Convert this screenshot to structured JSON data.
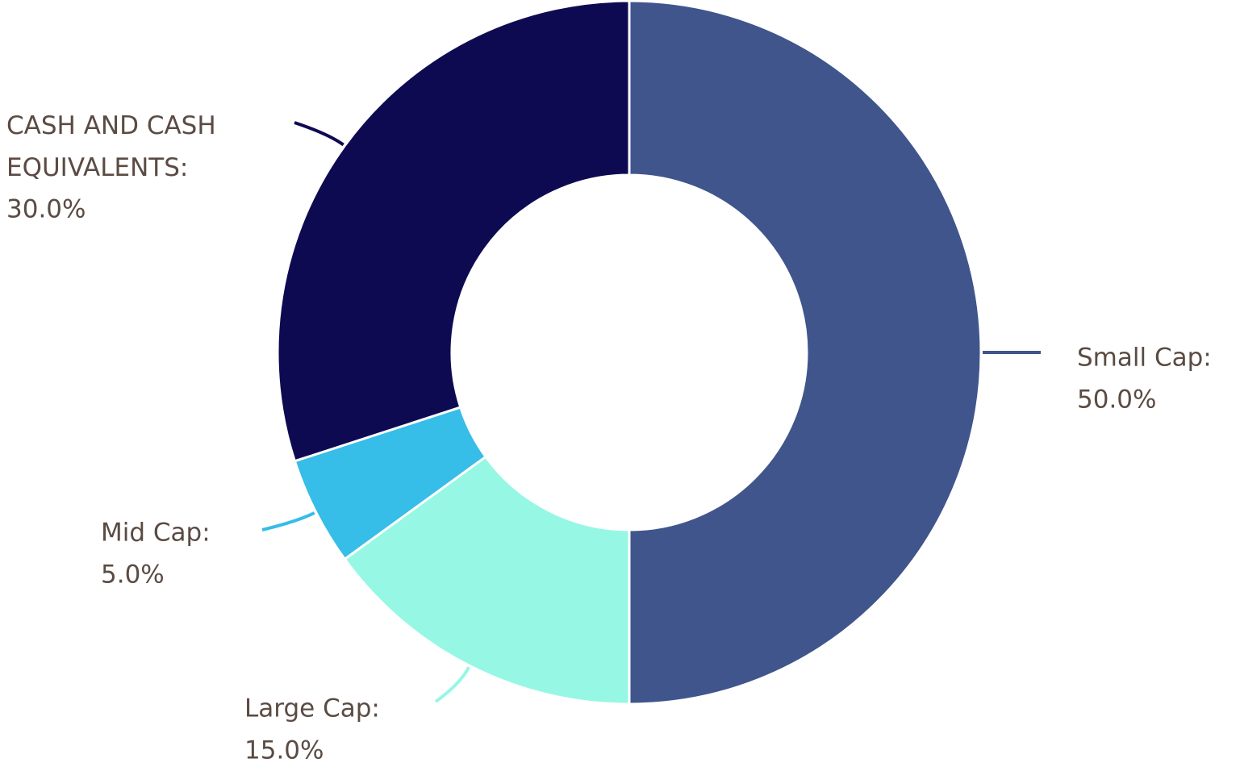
{
  "chart_data": {
    "type": "donut",
    "categories": [
      "Small Cap:",
      "Large Cap:",
      "Mid Cap:",
      "CASH AND CASH EQUIVALENTS:"
    ],
    "values": [
      50,
      15,
      5,
      30
    ],
    "value_labels": [
      "50.0%",
      "15.0%",
      "5.0%",
      "30.0%"
    ],
    "colors": [
      "#3f558c",
      "#96f7e4",
      "#36bde8",
      "#0e0a52"
    ]
  }
}
